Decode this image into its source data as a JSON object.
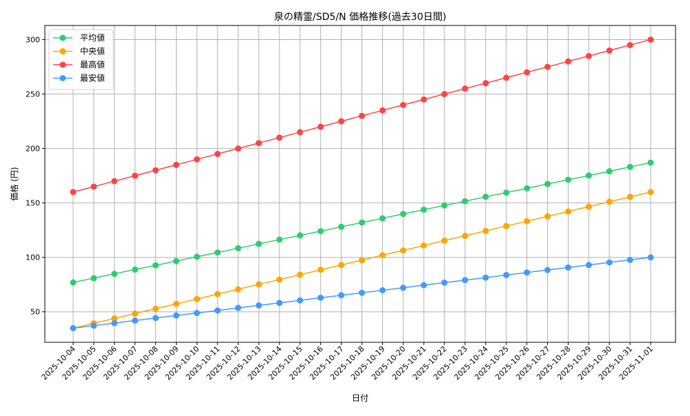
{
  "chart_data": {
    "type": "line",
    "title": "泉の精霊/SD5/N 価格推移(過去30日間)",
    "xlabel": "日付",
    "ylabel": "価格 (円)",
    "ylim": [
      22,
      313
    ],
    "yticks": [
      50,
      100,
      150,
      200,
      250,
      300
    ],
    "grid": true,
    "legend_position": "top-left",
    "x": [
      "2025-10-04",
      "2025-10-05",
      "2025-10-06",
      "2025-10-07",
      "2025-10-08",
      "2025-10-09",
      "2025-10-10",
      "2025-10-11",
      "2025-10-12",
      "2025-10-13",
      "2025-10-14",
      "2025-10-15",
      "2025-10-16",
      "2025-10-17",
      "2025-10-18",
      "2025-10-19",
      "2025-10-20",
      "2025-10-21",
      "2025-10-22",
      "2025-10-23",
      "2025-10-24",
      "2025-10-25",
      "2025-10-26",
      "2025-10-27",
      "2025-10-28",
      "2025-10-29",
      "2025-10-30",
      "2025-10-31",
      "2025-11-01"
    ],
    "series": [
      {
        "name": "平均値",
        "color": "#2ecc71",
        "values": [
          77,
          80.9,
          84.9,
          88.8,
          92.7,
          96.6,
          100.6,
          104.5,
          108.4,
          112.4,
          116.3,
          120.2,
          124.1,
          128.1,
          132,
          135.9,
          139.9,
          143.8,
          147.7,
          151.6,
          155.6,
          159.5,
          163.4,
          167.4,
          171.3,
          175.2,
          179.1,
          183.1,
          187
        ]
      },
      {
        "name": "中央値",
        "color": "#ffa500",
        "values": [
          35,
          39.5,
          43.9,
          48.4,
          52.9,
          57.3,
          61.8,
          66.3,
          70.7,
          75.2,
          79.6,
          84.1,
          88.6,
          93,
          97.5,
          102,
          106.4,
          110.9,
          115.4,
          119.8,
          124.3,
          128.8,
          133.2,
          137.7,
          142.1,
          146.6,
          151.1,
          155.5,
          160
        ]
      },
      {
        "name": "最高値",
        "color": "#ff4444",
        "values": [
          160,
          165,
          170,
          175,
          180,
          185,
          190,
          195,
          200,
          205,
          210,
          215,
          220,
          225,
          230,
          235,
          240,
          245,
          250,
          255,
          260,
          265,
          270,
          275,
          280,
          285,
          290,
          295,
          300
        ]
      },
      {
        "name": "最安値",
        "color": "#4499ff",
        "values": [
          35,
          37.3,
          39.6,
          42,
          44.3,
          46.6,
          48.9,
          51.2,
          53.6,
          55.9,
          58.2,
          60.5,
          62.9,
          65.2,
          67.5,
          69.8,
          72.1,
          74.5,
          76.8,
          79.1,
          81.4,
          83.8,
          86.1,
          88.4,
          90.7,
          93,
          95.4,
          97.7,
          100
        ]
      }
    ]
  }
}
